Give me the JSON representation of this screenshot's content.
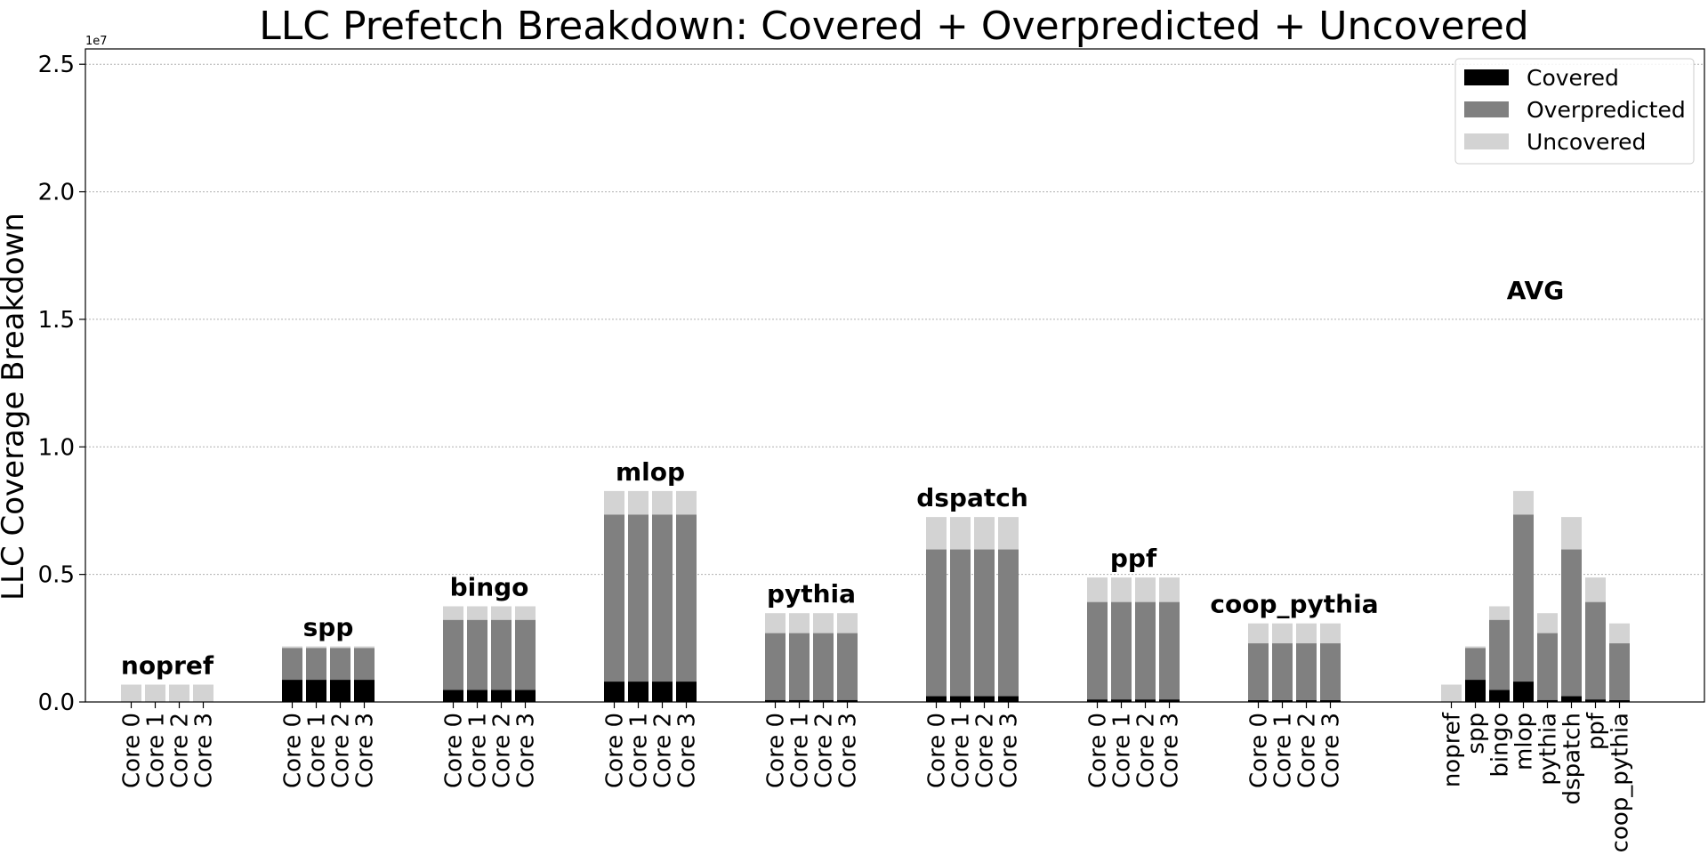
{
  "chart_data": {
    "type": "bar",
    "stacked": true,
    "title": "LLC Prefetch Breakdown: Covered + Overpredicted + Uncovered",
    "ylabel": "LLC Coverage Breakdown",
    "xlabel": "",
    "y_offset_label": "1e7",
    "ylim": [
      0,
      25600000.0
    ],
    "yticks": [
      0,
      5000000,
      10000000,
      15000000,
      20000000,
      25000000
    ],
    "ytick_labels": [
      "0.0",
      "0.5",
      "1.0",
      "1.5",
      "2.0",
      "2.5"
    ],
    "grid": "y-dashed",
    "legend_position": "top-right",
    "series": [
      {
        "name": "Covered",
        "color": "#000000"
      },
      {
        "name": "Overpredicted",
        "color": "#808080"
      },
      {
        "name": "Uncovered",
        "color": "#d3d3d3"
      }
    ],
    "groups": [
      {
        "name": "nopref",
        "categories": [
          "Core 0",
          "Core 1",
          "Core 2",
          "Core 3"
        ],
        "covered": [
          0,
          0,
          0,
          0
        ],
        "overpredicted": [
          0,
          0,
          0,
          0
        ],
        "uncovered": [
          680000,
          680000,
          680000,
          680000
        ]
      },
      {
        "name": "spp",
        "categories": [
          "Core 0",
          "Core 1",
          "Core 2",
          "Core 3"
        ],
        "covered": [
          870000,
          870000,
          870000,
          870000
        ],
        "overpredicted": [
          1250000,
          1250000,
          1250000,
          1250000
        ],
        "uncovered": [
          60000,
          60000,
          60000,
          60000
        ]
      },
      {
        "name": "bingo",
        "categories": [
          "Core 0",
          "Core 1",
          "Core 2",
          "Core 3"
        ],
        "covered": [
          470000,
          470000,
          470000,
          470000
        ],
        "overpredicted": [
          2750000,
          2750000,
          2750000,
          2750000
        ],
        "uncovered": [
          530000,
          530000,
          530000,
          530000
        ]
      },
      {
        "name": "mlop",
        "categories": [
          "Core 0",
          "Core 1",
          "Core 2",
          "Core 3"
        ],
        "covered": [
          800000,
          800000,
          800000,
          800000
        ],
        "overpredicted": [
          6550000,
          6550000,
          6550000,
          6550000
        ],
        "uncovered": [
          920000,
          920000,
          920000,
          920000
        ]
      },
      {
        "name": "pythia",
        "categories": [
          "Core 0",
          "Core 1",
          "Core 2",
          "Core 3"
        ],
        "covered": [
          80000,
          80000,
          80000,
          80000
        ],
        "overpredicted": [
          2620000,
          2620000,
          2620000,
          2620000
        ],
        "uncovered": [
          780000,
          780000,
          780000,
          780000
        ]
      },
      {
        "name": "dspatch",
        "categories": [
          "Core 0",
          "Core 1",
          "Core 2",
          "Core 3"
        ],
        "covered": [
          230000,
          230000,
          230000,
          230000
        ],
        "overpredicted": [
          5750000,
          5750000,
          5750000,
          5750000
        ],
        "uncovered": [
          1270000,
          1270000,
          1270000,
          1270000
        ]
      },
      {
        "name": "ppf",
        "categories": [
          "Core 0",
          "Core 1",
          "Core 2",
          "Core 3"
        ],
        "covered": [
          100000,
          100000,
          100000,
          100000
        ],
        "overpredicted": [
          3820000,
          3820000,
          3820000,
          3820000
        ],
        "uncovered": [
          960000,
          960000,
          960000,
          960000
        ]
      },
      {
        "name": "coop_pythia",
        "categories": [
          "Core 0",
          "Core 1",
          "Core 2",
          "Core 3"
        ],
        "covered": [
          70000,
          70000,
          70000,
          70000
        ],
        "overpredicted": [
          2230000,
          2230000,
          2230000,
          2230000
        ],
        "uncovered": [
          780000,
          780000,
          780000,
          780000
        ]
      },
      {
        "name": "AVG",
        "categories": [
          "nopref",
          "spp",
          "bingo",
          "mlop",
          "pythia",
          "dspatch",
          "ppf",
          "coop_pythia"
        ],
        "covered": [
          0,
          870000,
          470000,
          800000,
          80000,
          230000,
          100000,
          70000
        ],
        "overpredicted": [
          0,
          1250000,
          2750000,
          6550000,
          2620000,
          5750000,
          3820000,
          2230000
        ],
        "uncovered": [
          680000,
          60000,
          530000,
          920000,
          780000,
          1270000,
          960000,
          780000
        ]
      }
    ]
  }
}
